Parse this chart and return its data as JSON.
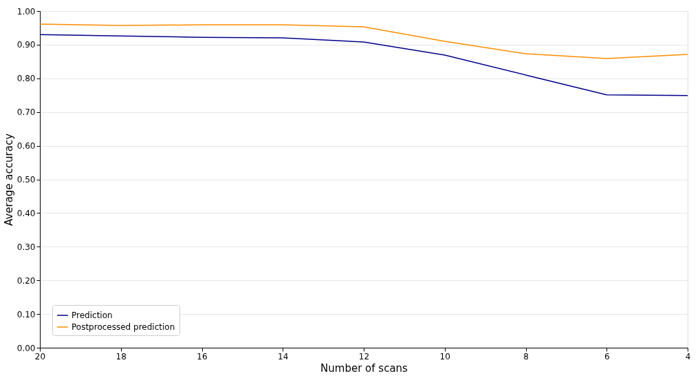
{
  "chart_data": {
    "type": "line",
    "xlabel": "Number of scans",
    "ylabel": "Average accuracy",
    "x": [
      20,
      18,
      16,
      14,
      12,
      10,
      8,
      6,
      4
    ],
    "series": [
      {
        "name": "Prediction",
        "color": "#00008b",
        "values": [
          0.93,
          0.926,
          0.922,
          0.92,
          0.908,
          0.869,
          0.81,
          0.751,
          0.749
        ]
      },
      {
        "name": "Postprocessed prediction",
        "color": "#ff8c00",
        "values": [
          0.961,
          0.957,
          0.959,
          0.959,
          0.953,
          0.91,
          0.873,
          0.859,
          0.871
        ]
      }
    ],
    "xlim": [
      20,
      4
    ],
    "xticks": [
      20,
      18,
      16,
      14,
      12,
      10,
      8,
      6,
      4
    ],
    "ylim": [
      0,
      1
    ],
    "yticks": [
      {
        "value": 0,
        "label": "0.00"
      },
      {
        "value": 0.1,
        "label": "0.10"
      },
      {
        "value": 0.2,
        "label": "0.20"
      },
      {
        "value": 0.3,
        "label": "0.30"
      },
      {
        "value": 0.4,
        "label": "0.40"
      },
      {
        "value": 0.5,
        "label": "0.50"
      },
      {
        "value": 0.6,
        "label": "0.60"
      },
      {
        "value": 0.7,
        "label": "0.70"
      },
      {
        "value": 0.8,
        "label": "0.80"
      },
      {
        "value": 0.9,
        "label": "0.90"
      },
      {
        "value": 1,
        "label": "1.00"
      }
    ],
    "grid": "y",
    "legend": "bottom left",
    "marker": "none",
    "line_style": "solid"
  }
}
